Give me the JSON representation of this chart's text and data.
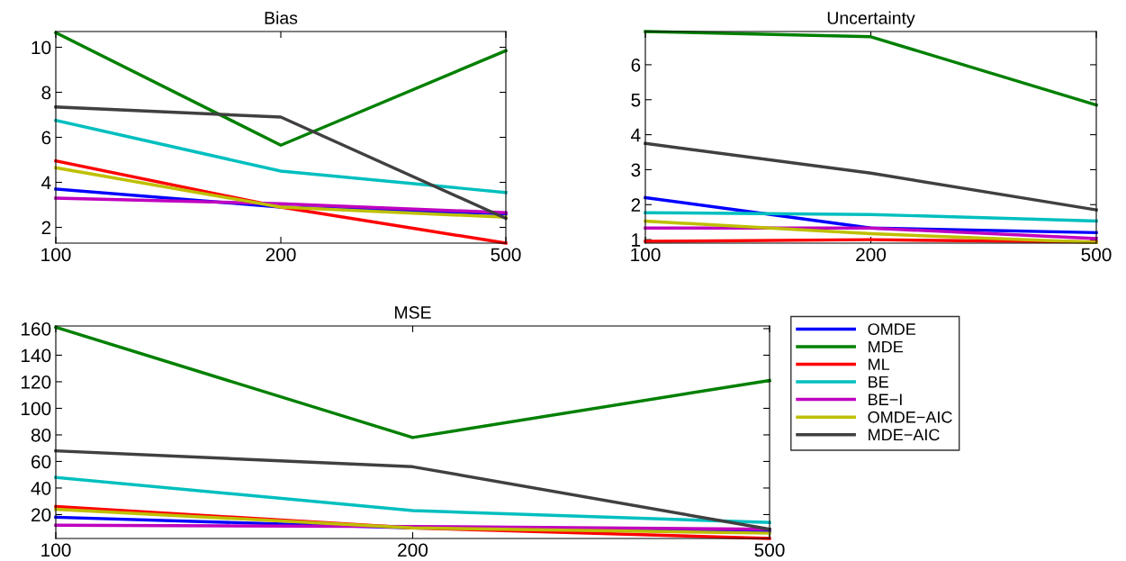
{
  "chart_data": [
    {
      "type": "line",
      "title": "Bias",
      "categories": [
        "100",
        "200",
        "500"
      ],
      "ylim": [
        1.3,
        10.7
      ],
      "yticks": [
        2,
        4,
        6,
        8,
        10
      ],
      "grid": false,
      "series": [
        {
          "color": "#0000ff",
          "values": [
            3.7,
            2.9,
            2.6
          ]
        },
        {
          "color": "#008000",
          "values": [
            10.65,
            5.65,
            9.85
          ]
        },
        {
          "color": "#ff0000",
          "values": [
            4.95,
            2.9,
            1.3
          ]
        },
        {
          "color": "#00bfbf",
          "values": [
            6.75,
            4.5,
            3.55
          ]
        },
        {
          "color": "#bf00bf",
          "values": [
            3.3,
            3.05,
            2.65
          ]
        },
        {
          "color": "#bfbf00",
          "values": [
            4.65,
            2.9,
            2.45
          ]
        },
        {
          "color": "#404040",
          "values": [
            7.35,
            6.9,
            2.4
          ]
        }
      ]
    },
    {
      "type": "line",
      "title": "Uncertainty",
      "categories": [
        "100",
        "200",
        "500"
      ],
      "ylim": [
        0.9,
        6.95
      ],
      "yticks": [
        1,
        2,
        3,
        4,
        5,
        6
      ],
      "grid": false,
      "series": [
        {
          "color": "#0000ff",
          "values": [
            2.2,
            1.33,
            1.2
          ]
        },
        {
          "color": "#008000",
          "values": [
            6.95,
            6.8,
            4.85
          ]
        },
        {
          "color": "#ff0000",
          "values": [
            0.95,
            1.0,
            0.93
          ]
        },
        {
          "color": "#00bfbf",
          "values": [
            1.77,
            1.72,
            1.53
          ]
        },
        {
          "color": "#bf00bf",
          "values": [
            1.33,
            1.33,
            1.03
          ]
        },
        {
          "color": "#bfbf00",
          "values": [
            1.53,
            1.17,
            0.92
          ]
        },
        {
          "color": "#404040",
          "values": [
            3.75,
            2.9,
            1.85
          ]
        }
      ]
    },
    {
      "type": "line",
      "title": "MSE",
      "categories": [
        "100",
        "200",
        "500"
      ],
      "ylim": [
        2,
        162
      ],
      "yticks": [
        20,
        40,
        60,
        80,
        100,
        120,
        140,
        160
      ],
      "grid": false,
      "legend": "right",
      "series": [
        {
          "name": "OMDE",
          "color": "#0000ff",
          "values": [
            18,
            10,
            7
          ]
        },
        {
          "name": "MDE",
          "color": "#008000",
          "values": [
            161,
            78,
            121
          ]
        },
        {
          "name": "ML",
          "color": "#ff0000",
          "values": [
            26,
            10,
            2
          ]
        },
        {
          "name": "BE",
          "color": "#00bfbf",
          "values": [
            48,
            23,
            14
          ]
        },
        {
          "name": "BE−I",
          "color": "#bf00bf",
          "values": [
            12,
            11,
            9
          ]
        },
        {
          "name": "OMDE−AIC",
          "color": "#bfbf00",
          "values": [
            24,
            10,
            6
          ]
        },
        {
          "name": "MDE−AIC",
          "color": "#404040",
          "values": [
            68,
            56,
            9
          ]
        }
      ]
    }
  ]
}
